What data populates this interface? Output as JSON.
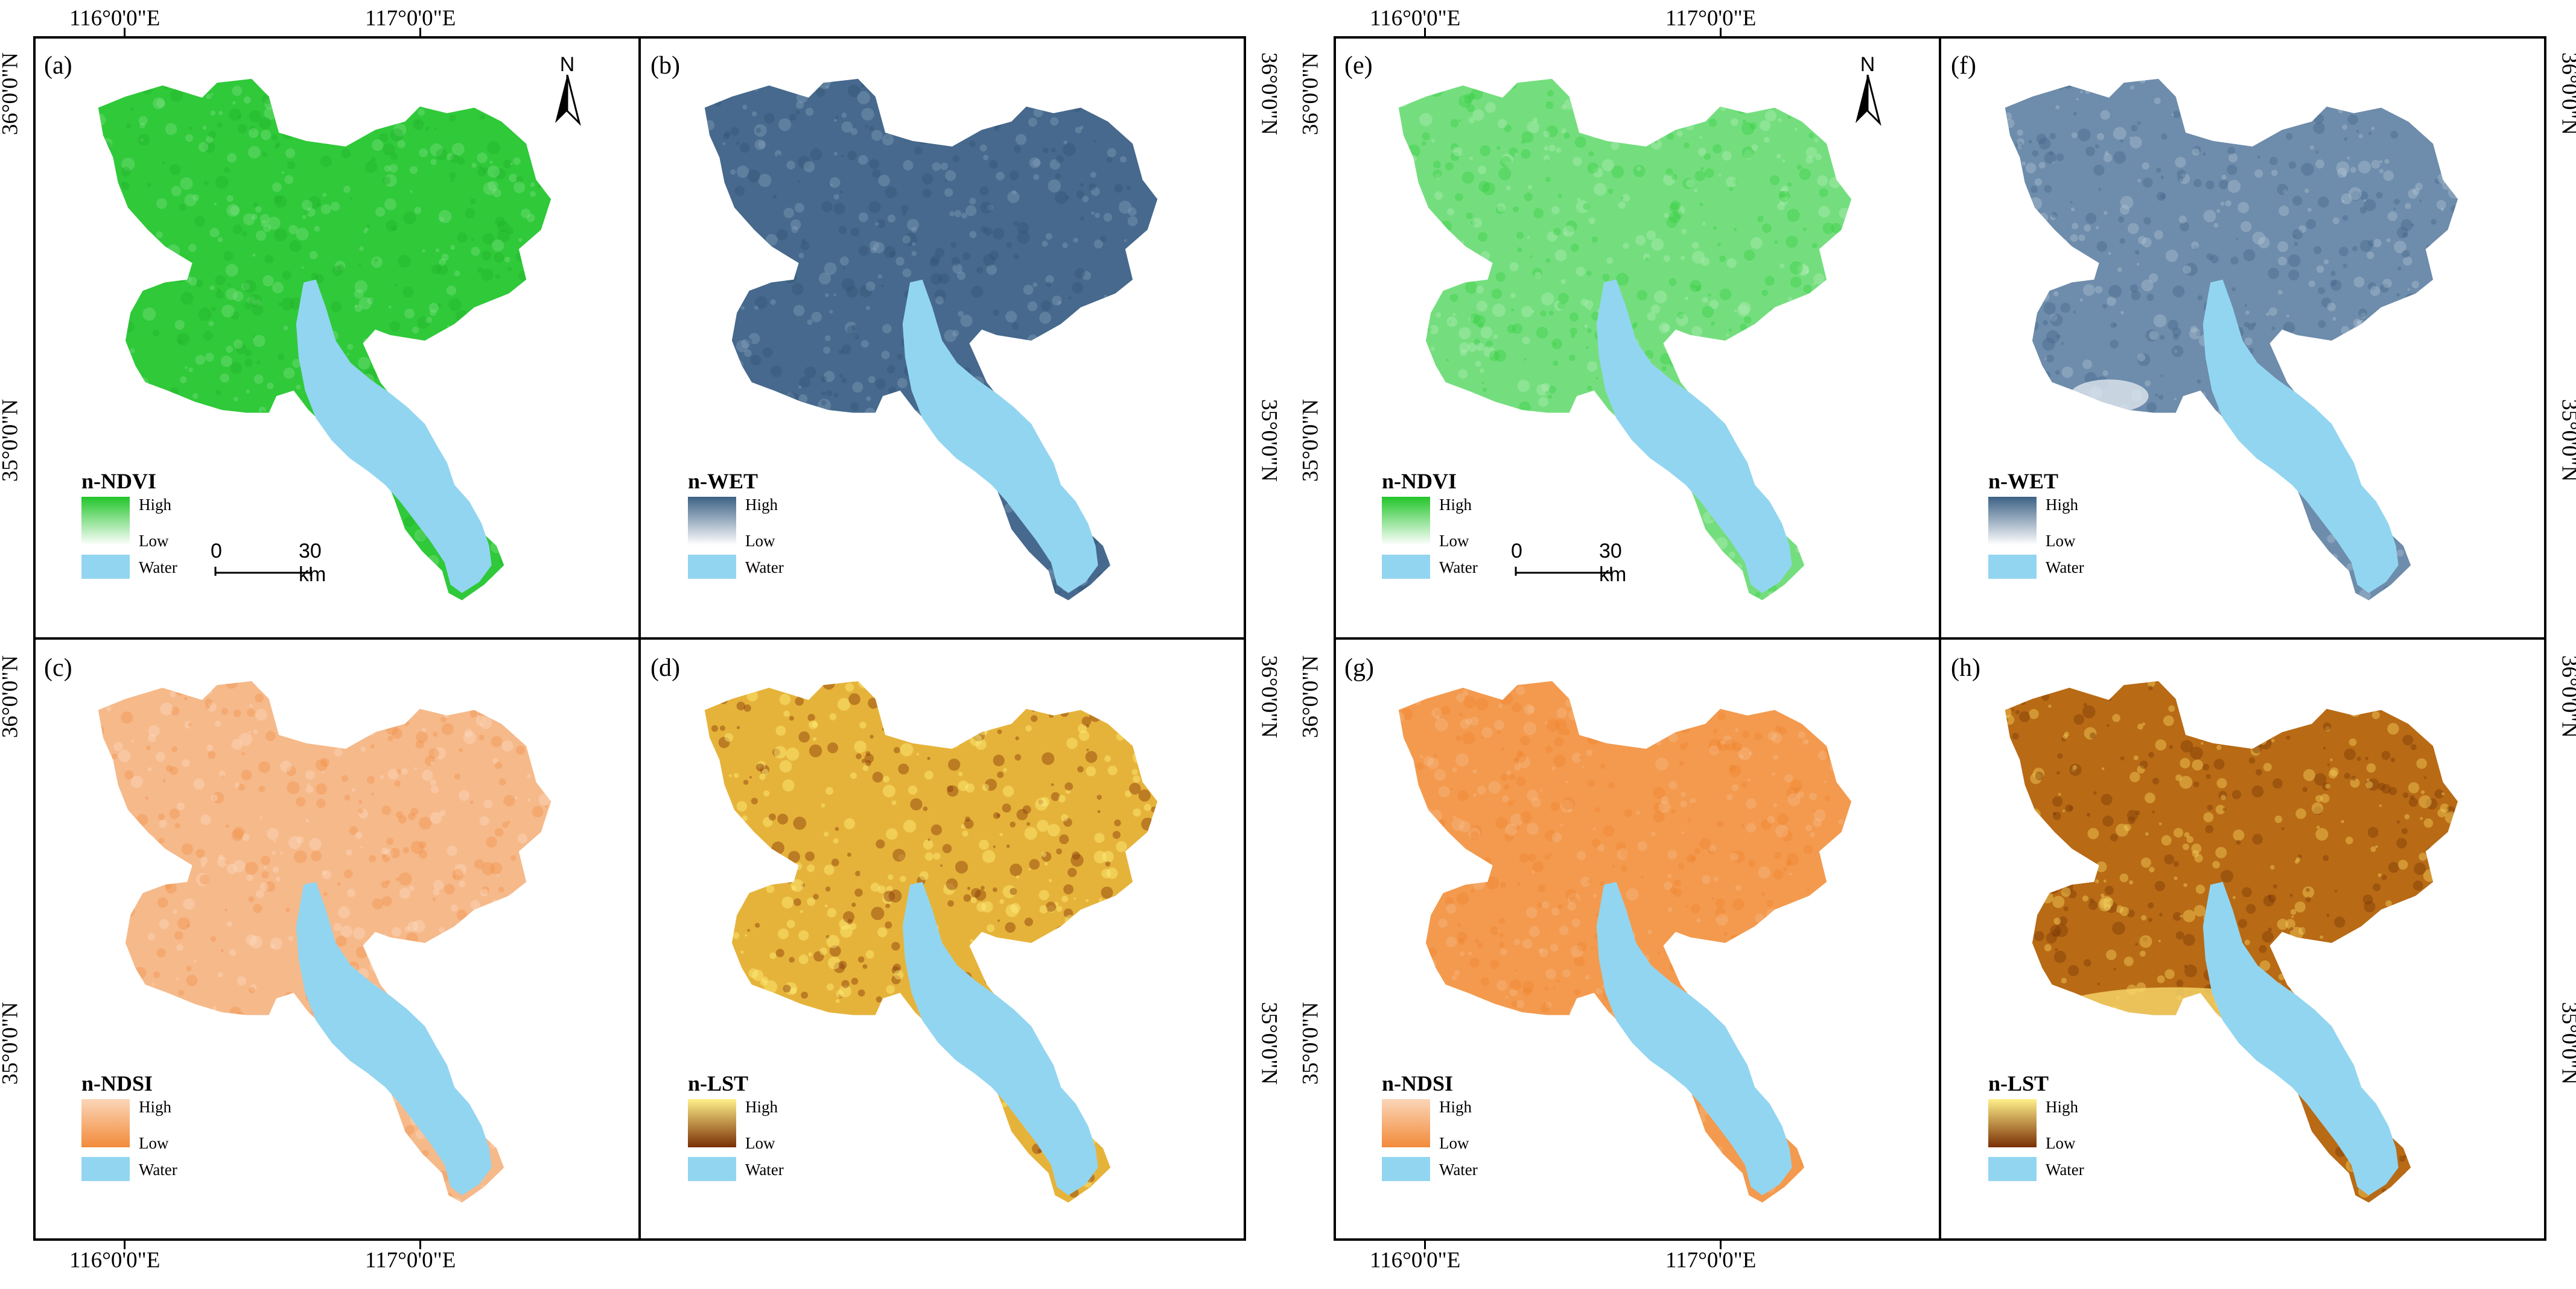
{
  "coords": {
    "lon_116": "116°0'0\"E",
    "lon_117": "117°0'0\"E",
    "lat_36": "36°0'0\"N",
    "lat_35": "35°0'0\"N"
  },
  "colors": {
    "water": "#92d5f0",
    "ndvi_high": "#22c52b",
    "ndvi_low": "#ffffff",
    "wet_high": "#3c6185",
    "wet_low": "#ffffff",
    "ndsi_high": "#fbd6b8",
    "ndsi_low": "#f28a3a",
    "lst_high": "#fff08a",
    "lst_low": "#7a2f05"
  },
  "groups": [
    {
      "panels": [
        {
          "label": "(a)",
          "index_name": "n-NDVI",
          "high": "High",
          "low": "Low",
          "water": "Water",
          "scheme": "ndvi_a"
        },
        {
          "label": "(b)",
          "index_name": "n-WET",
          "high": "High",
          "low": "Low",
          "water": "Water",
          "scheme": "wet_b"
        },
        {
          "label": "(c)",
          "index_name": "n-NDSI",
          "high": "High",
          "low": "Low",
          "water": "Water",
          "scheme": "ndsi_c"
        },
        {
          "label": "(d)",
          "index_name": "n-LST",
          "high": "High",
          "low": "Low",
          "water": "Water",
          "scheme": "lst_d"
        }
      ]
    },
    {
      "panels": [
        {
          "label": "(e)",
          "index_name": "n-NDVI",
          "high": "High",
          "low": "Low",
          "water": "Water",
          "scheme": "ndvi_e"
        },
        {
          "label": "(f)",
          "index_name": "n-WET",
          "high": "High",
          "low": "Low",
          "water": "Water",
          "scheme": "wet_f"
        },
        {
          "label": "(g)",
          "index_name": "n-NDSI",
          "high": "High",
          "low": "Low",
          "water": "Water",
          "scheme": "ndsi_g"
        },
        {
          "label": "(h)",
          "index_name": "n-LST",
          "high": "High",
          "low": "Low",
          "water": "Water",
          "scheme": "lst_h"
        }
      ]
    }
  ],
  "north_arrow": {
    "letter": "N"
  },
  "scale_bar": {
    "start": "0",
    "end": "30 km"
  }
}
